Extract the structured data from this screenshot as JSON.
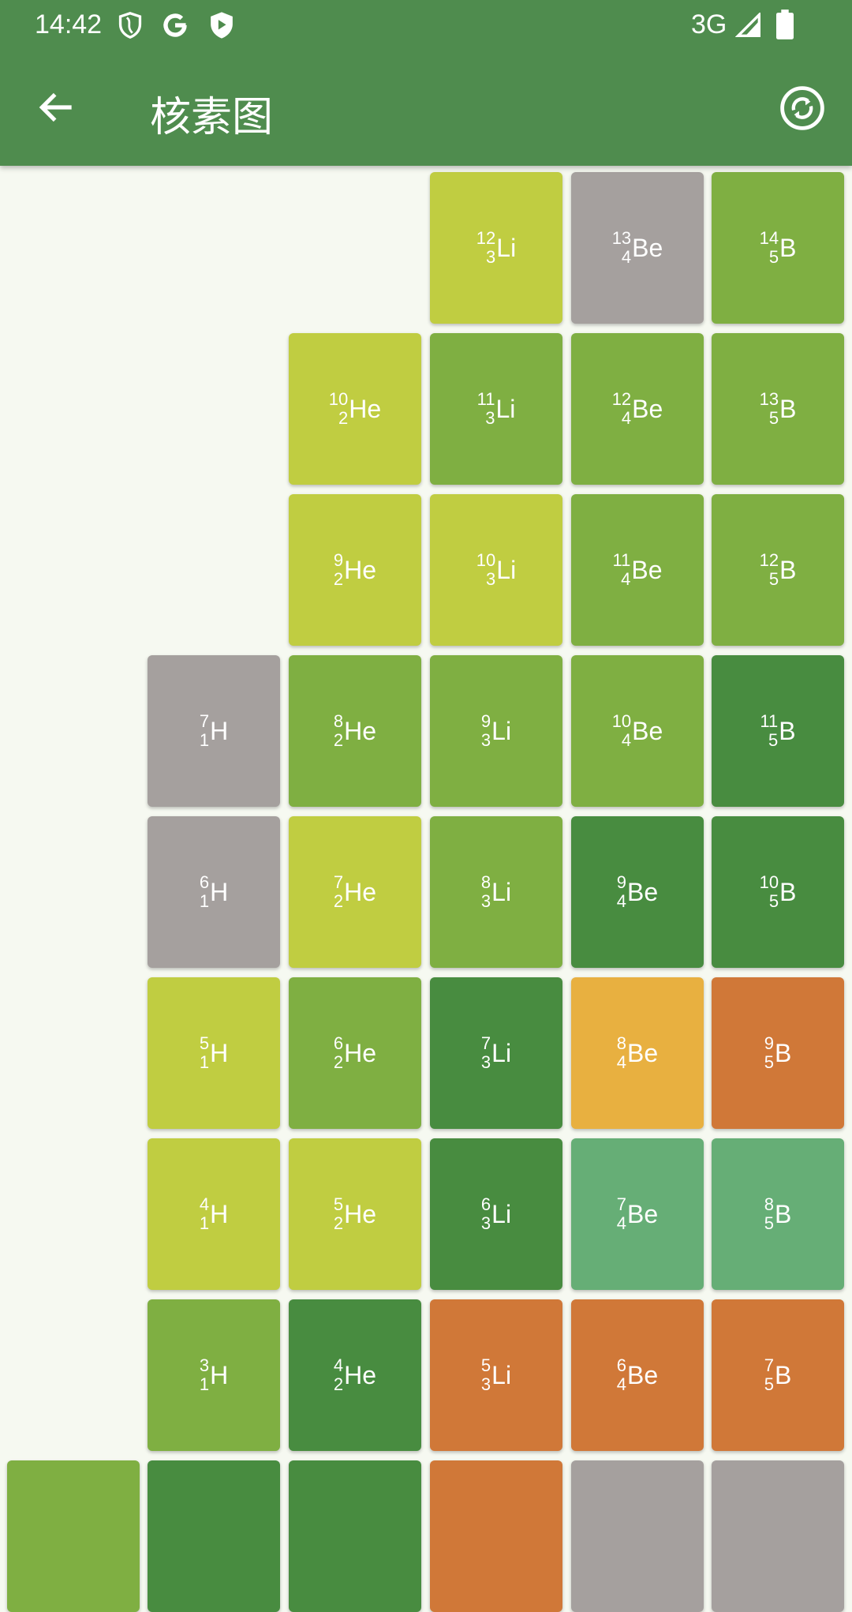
{
  "status_bar": {
    "time": "14:42",
    "network": "3G",
    "icons": [
      "shield-icon",
      "google-icon",
      "play-protect-icon",
      "signal-icon",
      "battery-icon"
    ]
  },
  "app_bar": {
    "title": "核素图",
    "back_icon": "arrow-back-icon",
    "action_icon": "refresh-circle-icon"
  },
  "colors": {
    "lime": "#c0cd41",
    "gray": "#a5a09e",
    "green": "#7faf42",
    "dark_green": "#488c40",
    "orange": "#d07838",
    "yellow": "#e8b040",
    "teal": "#66ae76",
    "app_bar": "#4f8c4e",
    "background": "#f6f9f1"
  },
  "nuclides": [
    {
      "row": 0,
      "col": 3,
      "A": "12",
      "Z": "3",
      "symbol": "Li",
      "color": "lime"
    },
    {
      "row": 0,
      "col": 4,
      "A": "13",
      "Z": "4",
      "symbol": "Be",
      "color": "gray"
    },
    {
      "row": 0,
      "col": 5,
      "A": "14",
      "Z": "5",
      "symbol": "B",
      "color": "green"
    },
    {
      "row": 1,
      "col": 2,
      "A": "10",
      "Z": "2",
      "symbol": "He",
      "color": "lime"
    },
    {
      "row": 1,
      "col": 3,
      "A": "11",
      "Z": "3",
      "symbol": "Li",
      "color": "green"
    },
    {
      "row": 1,
      "col": 4,
      "A": "12",
      "Z": "4",
      "symbol": "Be",
      "color": "green"
    },
    {
      "row": 1,
      "col": 5,
      "A": "13",
      "Z": "5",
      "symbol": "B",
      "color": "green"
    },
    {
      "row": 2,
      "col": 2,
      "A": "9",
      "Z": "2",
      "symbol": "He",
      "color": "lime"
    },
    {
      "row": 2,
      "col": 3,
      "A": "10",
      "Z": "3",
      "symbol": "Li",
      "color": "lime"
    },
    {
      "row": 2,
      "col": 4,
      "A": "11",
      "Z": "4",
      "symbol": "Be",
      "color": "green"
    },
    {
      "row": 2,
      "col": 5,
      "A": "12",
      "Z": "5",
      "symbol": "B",
      "color": "green"
    },
    {
      "row": 3,
      "col": 1,
      "A": "7",
      "Z": "1",
      "symbol": "H",
      "color": "gray"
    },
    {
      "row": 3,
      "col": 2,
      "A": "8",
      "Z": "2",
      "symbol": "He",
      "color": "green"
    },
    {
      "row": 3,
      "col": 3,
      "A": "9",
      "Z": "3",
      "symbol": "Li",
      "color": "green"
    },
    {
      "row": 3,
      "col": 4,
      "A": "10",
      "Z": "4",
      "symbol": "Be",
      "color": "green"
    },
    {
      "row": 3,
      "col": 5,
      "A": "11",
      "Z": "5",
      "symbol": "B",
      "color": "dark_green"
    },
    {
      "row": 4,
      "col": 1,
      "A": "6",
      "Z": "1",
      "symbol": "H",
      "color": "gray"
    },
    {
      "row": 4,
      "col": 2,
      "A": "7",
      "Z": "2",
      "symbol": "He",
      "color": "lime"
    },
    {
      "row": 4,
      "col": 3,
      "A": "8",
      "Z": "3",
      "symbol": "Li",
      "color": "green"
    },
    {
      "row": 4,
      "col": 4,
      "A": "9",
      "Z": "4",
      "symbol": "Be",
      "color": "dark_green"
    },
    {
      "row": 4,
      "col": 5,
      "A": "10",
      "Z": "5",
      "symbol": "B",
      "color": "dark_green"
    },
    {
      "row": 5,
      "col": 1,
      "A": "5",
      "Z": "1",
      "symbol": "H",
      "color": "lime"
    },
    {
      "row": 5,
      "col": 2,
      "A": "6",
      "Z": "2",
      "symbol": "He",
      "color": "green"
    },
    {
      "row": 5,
      "col": 3,
      "A": "7",
      "Z": "3",
      "symbol": "Li",
      "color": "dark_green"
    },
    {
      "row": 5,
      "col": 4,
      "A": "8",
      "Z": "4",
      "symbol": "Be",
      "color": "yellow"
    },
    {
      "row": 5,
      "col": 5,
      "A": "9",
      "Z": "5",
      "symbol": "B",
      "color": "orange"
    },
    {
      "row": 6,
      "col": 1,
      "A": "4",
      "Z": "1",
      "symbol": "H",
      "color": "lime"
    },
    {
      "row": 6,
      "col": 2,
      "A": "5",
      "Z": "2",
      "symbol": "He",
      "color": "lime"
    },
    {
      "row": 6,
      "col": 3,
      "A": "6",
      "Z": "3",
      "symbol": "Li",
      "color": "dark_green"
    },
    {
      "row": 6,
      "col": 4,
      "A": "7",
      "Z": "4",
      "symbol": "Be",
      "color": "teal"
    },
    {
      "row": 6,
      "col": 5,
      "A": "8",
      "Z": "5",
      "symbol": "B",
      "color": "teal"
    },
    {
      "row": 7,
      "col": 1,
      "A": "3",
      "Z": "1",
      "symbol": "H",
      "color": "green"
    },
    {
      "row": 7,
      "col": 2,
      "A": "4",
      "Z": "2",
      "symbol": "He",
      "color": "dark_green"
    },
    {
      "row": 7,
      "col": 3,
      "A": "5",
      "Z": "3",
      "symbol": "Li",
      "color": "orange"
    },
    {
      "row": 7,
      "col": 4,
      "A": "6",
      "Z": "4",
      "symbol": "Be",
      "color": "orange"
    },
    {
      "row": 7,
      "col": 5,
      "A": "7",
      "Z": "5",
      "symbol": "B",
      "color": "orange"
    },
    {
      "row": 8,
      "col": 0,
      "color": "green"
    },
    {
      "row": 8,
      "col": 1,
      "color": "dark_green"
    },
    {
      "row": 8,
      "col": 2,
      "color": "dark_green"
    },
    {
      "row": 8,
      "col": 3,
      "color": "orange"
    },
    {
      "row": 8,
      "col": 4,
      "color": "gray"
    },
    {
      "row": 8,
      "col": 5,
      "color": "gray"
    }
  ]
}
